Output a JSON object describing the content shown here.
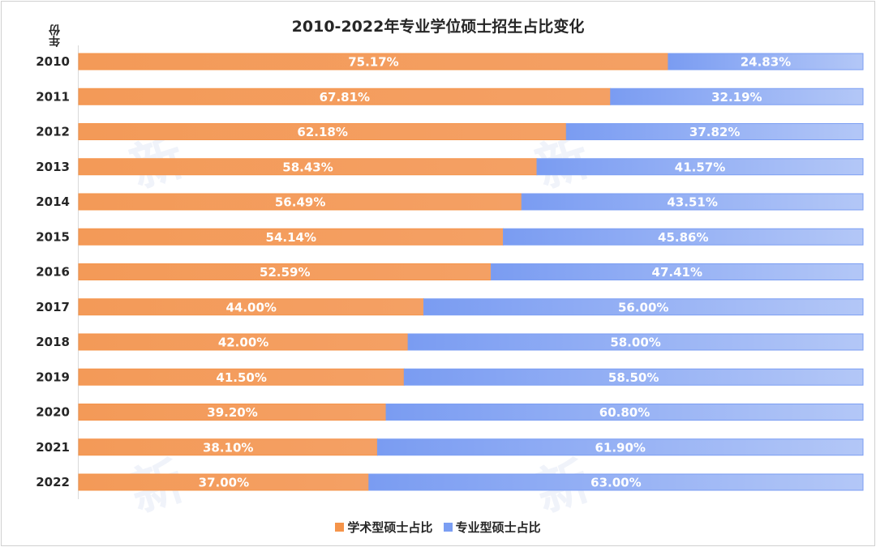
{
  "chart_data": {
    "type": "bar",
    "orientation": "horizontal",
    "stacked": true,
    "title": "2010-2022年专业学位硕士招生占比变化",
    "ylabel": "年份",
    "xlabel": "",
    "xlim": [
      0,
      100
    ],
    "categories": [
      "2010",
      "2011",
      "2012",
      "2013",
      "2014",
      "2015",
      "2016",
      "2017",
      "2018",
      "2019",
      "2020",
      "2021",
      "2022"
    ],
    "series": [
      {
        "name": "学术型硕士占比",
        "color": "#f5944a",
        "values": [
          75.17,
          67.81,
          62.18,
          58.43,
          56.49,
          54.14,
          52.59,
          44.0,
          42.0,
          41.5,
          39.2,
          38.1,
          37.0
        ],
        "labels": [
          "75.17%",
          "67.81%",
          "62.18%",
          "58.43%",
          "56.49%",
          "54.14%",
          "52.59%",
          "44.00%",
          "42.00%",
          "41.50%",
          "39.20%",
          "38.10%",
          "37.00%"
        ]
      },
      {
        "name": "专业型硕士占比",
        "color": "#7b9ef3",
        "values": [
          24.83,
          32.19,
          37.82,
          41.57,
          43.51,
          45.86,
          47.41,
          56.0,
          58.0,
          58.5,
          60.8,
          61.9,
          63.0
        ],
        "labels": [
          "24.83%",
          "32.19%",
          "37.82%",
          "41.57%",
          "43.51%",
          "45.86%",
          "47.41%",
          "56.00%",
          "58.00%",
          "58.50%",
          "60.80%",
          "61.90%",
          "63.00%"
        ]
      }
    ],
    "legend_position": "bottom"
  }
}
